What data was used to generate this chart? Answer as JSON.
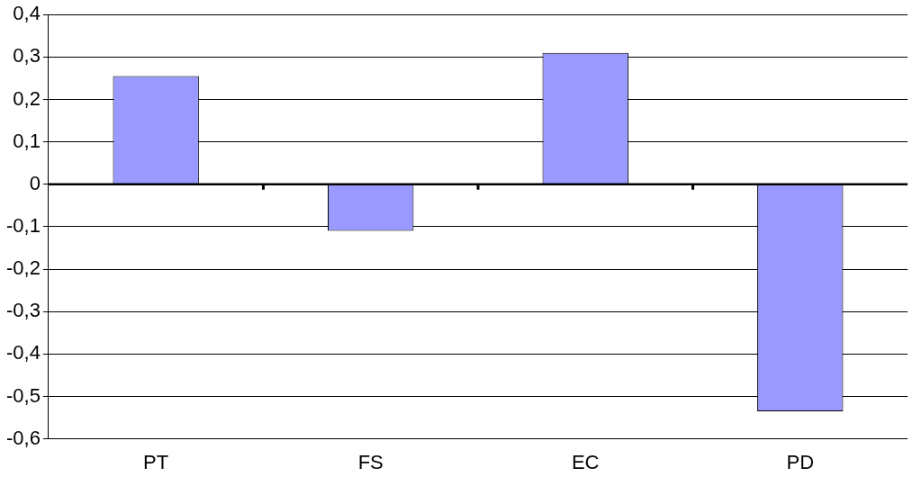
{
  "chart_data": {
    "type": "bar",
    "categories": [
      "PT",
      "FS",
      "EC",
      "PD"
    ],
    "series": [
      {
        "color": "#9999ff",
        "values": [
          0.255,
          -0.11,
          0.31,
          -0.535
        ]
      }
    ],
    "ylim": [
      -0.6,
      0.4
    ],
    "yticks": [
      {
        "value": 0.4,
        "label": "0,4"
      },
      {
        "value": 0.3,
        "label": "0,3"
      },
      {
        "value": 0.2,
        "label": "0,2"
      },
      {
        "value": 0.1,
        "label": "0,1"
      },
      {
        "value": 0,
        "label": "0"
      },
      {
        "value": -0.1,
        "label": "-0,1"
      },
      {
        "value": -0.2,
        "label": "-0,2"
      },
      {
        "value": -0.3,
        "label": "-0,3"
      },
      {
        "value": -0.4,
        "label": "-0,4"
      },
      {
        "value": -0.5,
        "label": "-0,5"
      },
      {
        "value": -0.6,
        "label": "-0,6"
      }
    ],
    "grid": "y",
    "legend": false
  }
}
